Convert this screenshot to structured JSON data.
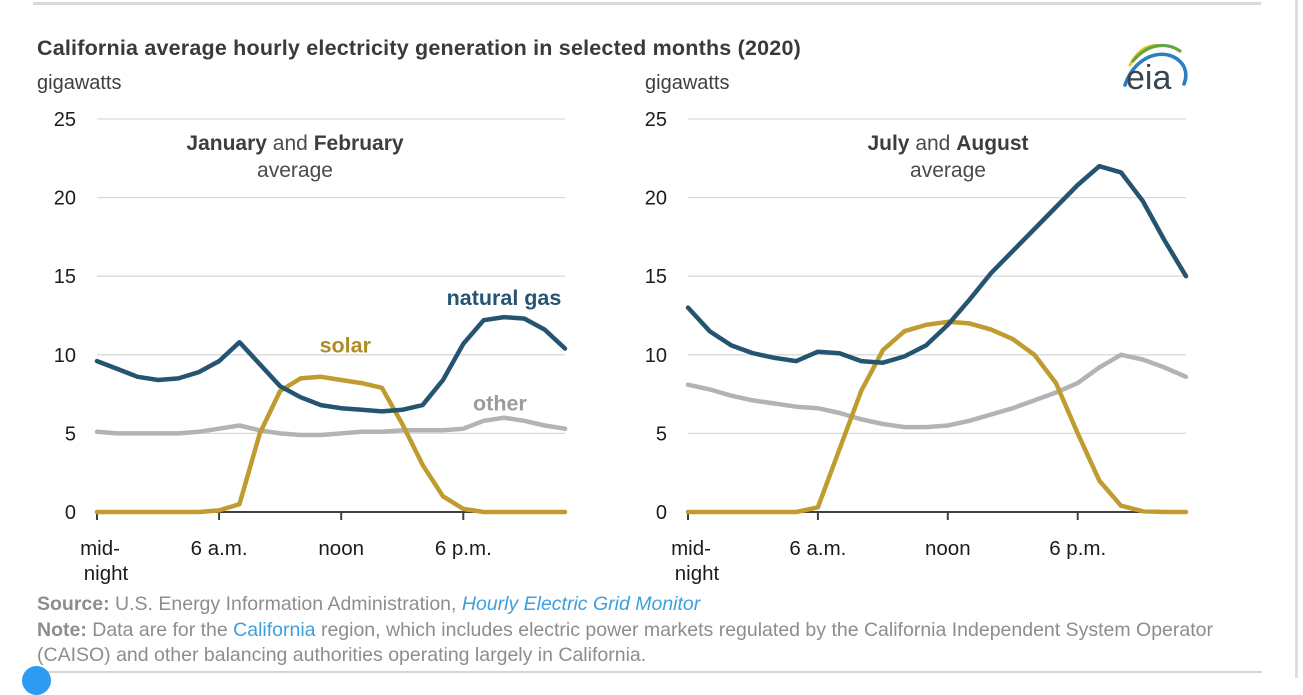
{
  "header": {
    "title": "California average hourly electricity generation in selected months (2020)",
    "unit_label": "gigawatts"
  },
  "logo": {
    "text": "eia",
    "arc_colors": {
      "blue": "#2f7ec2",
      "green": "#62a744",
      "yellow": "#f2c21f"
    }
  },
  "colors": {
    "natural_gas": "#255470",
    "solar": "#bf9b30",
    "other": "#b3b3b3",
    "grid": "#d9d9d9",
    "axis": "#3f3f3f",
    "tick_text": "#1c1c1c",
    "link": "#3da0dc"
  },
  "chart_data": [
    {
      "type": "line",
      "subtitle": {
        "month_a": "January",
        "joiner": " and ",
        "month_b": "February",
        "suffix": "average"
      },
      "x_unit": "hour of day (0-23)",
      "ylim": [
        0,
        25
      ],
      "y_ticks": [
        0,
        5,
        10,
        15,
        20,
        25
      ],
      "x_ticks": [
        {
          "hour": 0,
          "lines": [
            "mid-",
            "night"
          ]
        },
        {
          "hour": 6,
          "lines": [
            "6 a.m."
          ]
        },
        {
          "hour": 12,
          "lines": [
            "noon"
          ]
        },
        {
          "hour": 18,
          "lines": [
            "6 p.m."
          ]
        }
      ],
      "grid": true,
      "series": [
        {
          "name": "other",
          "color": "#b3b3b3",
          "values": [
            5.1,
            5.0,
            5.0,
            5.0,
            5.0,
            5.1,
            5.3,
            5.5,
            5.2,
            5.0,
            4.9,
            4.9,
            5.0,
            5.1,
            5.1,
            5.2,
            5.2,
            5.2,
            5.3,
            5.8,
            6.0,
            5.8,
            5.5,
            5.3
          ],
          "label": {
            "text": "other",
            "hour": 19.8,
            "value": 6.9,
            "color": "#9b9b9b"
          }
        },
        {
          "name": "solar",
          "color": "#bf9b30",
          "values": [
            0,
            0,
            0,
            0,
            0,
            0,
            0.1,
            0.5,
            5.0,
            7.7,
            8.5,
            8.6,
            8.4,
            8.2,
            7.9,
            5.6,
            3.0,
            1.0,
            0.2,
            0,
            0,
            0,
            0,
            0
          ],
          "label": {
            "text": "solar",
            "hour": 12.2,
            "value": 10.6,
            "color": "#b28b24"
          }
        },
        {
          "name": "natural gas",
          "color": "#255470",
          "values": [
            9.6,
            9.1,
            8.6,
            8.4,
            8.5,
            8.9,
            9.6,
            10.8,
            9.4,
            8.0,
            7.3,
            6.8,
            6.6,
            6.5,
            6.4,
            6.5,
            6.8,
            8.4,
            10.7,
            12.2,
            12.4,
            12.3,
            11.6,
            10.4
          ],
          "label": {
            "text": "natural gas",
            "hour": 20.0,
            "value": 13.6,
            "color": "#255470"
          }
        }
      ]
    },
    {
      "type": "line",
      "subtitle": {
        "month_a": "July",
        "joiner": " and ",
        "month_b": "August",
        "suffix": "average"
      },
      "x_unit": "hour of day (0-23)",
      "ylim": [
        0,
        25
      ],
      "y_ticks": [
        0,
        5,
        10,
        15,
        20,
        25
      ],
      "x_ticks": [
        {
          "hour": 0,
          "lines": [
            "mid-",
            "night"
          ]
        },
        {
          "hour": 6,
          "lines": [
            "6 a.m."
          ]
        },
        {
          "hour": 12,
          "lines": [
            "noon"
          ]
        },
        {
          "hour": 18,
          "lines": [
            "6 p.m."
          ]
        }
      ],
      "grid": true,
      "series": [
        {
          "name": "other",
          "color": "#b3b3b3",
          "values": [
            8.1,
            7.8,
            7.4,
            7.1,
            6.9,
            6.7,
            6.6,
            6.3,
            5.9,
            5.6,
            5.4,
            5.4,
            5.5,
            5.8,
            6.2,
            6.6,
            7.1,
            7.6,
            8.2,
            9.2,
            10.0,
            9.7,
            9.2,
            8.6
          ],
          "label": null
        },
        {
          "name": "solar",
          "color": "#bf9b30",
          "values": [
            0,
            0,
            0,
            0,
            0,
            0,
            0.3,
            4.0,
            7.7,
            10.3,
            11.5,
            11.9,
            12.1,
            12.0,
            11.6,
            11.0,
            10.0,
            8.2,
            5.0,
            2.0,
            0.4,
            0.05,
            0,
            0
          ],
          "label": null
        },
        {
          "name": "natural gas",
          "color": "#255470",
          "values": [
            13.0,
            11.5,
            10.6,
            10.1,
            9.8,
            9.6,
            10.2,
            10.1,
            9.6,
            9.5,
            9.9,
            10.6,
            11.9,
            13.5,
            15.2,
            16.6,
            18.0,
            19.4,
            20.8,
            22.0,
            21.6,
            19.8,
            17.3,
            15.0
          ],
          "label": null
        }
      ]
    }
  ],
  "footer": {
    "source_label": "Source:",
    "source_text": " U.S. Energy Information Administration, ",
    "source_link": "Hourly Electric Grid Monitor",
    "note_label": "Note:",
    "note_pre": " Data are for the ",
    "note_link": "California",
    "note_post": " region, which includes electric power markets regulated by the California Independent System Operator (CAISO) and other balancing authorities operating largely in California."
  }
}
